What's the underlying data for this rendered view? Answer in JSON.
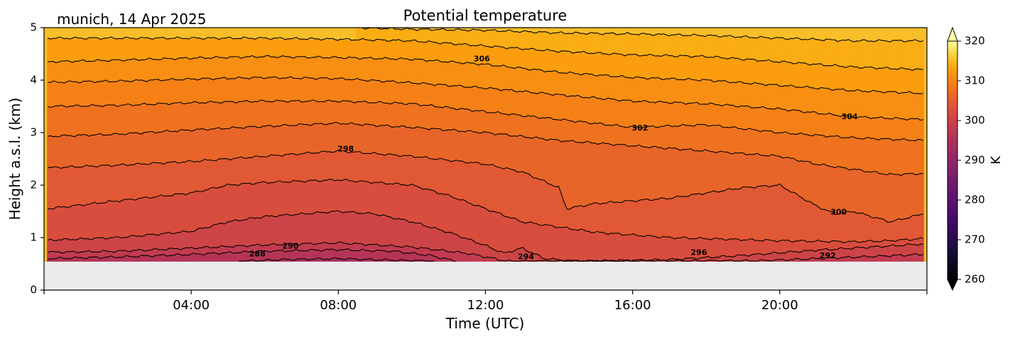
{
  "chart_data": {
    "type": "heatmap",
    "title": "Potential temperature",
    "subtitle": "munich, 14 Apr 2025",
    "xlabel": "Time (UTC)",
    "ylabel": "Height a.s.l. (km)",
    "xlim": [
      0,
      24
    ],
    "ylim": [
      0,
      5
    ],
    "x_ticks": [
      {
        "value": 4,
        "label": "04:00"
      },
      {
        "value": 8,
        "label": "08:00"
      },
      {
        "value": 12,
        "label": "12:00"
      },
      {
        "value": 16,
        "label": "16:00"
      },
      {
        "value": 20,
        "label": "20:00"
      }
    ],
    "y_ticks": [
      0,
      1,
      2,
      3,
      4,
      5
    ],
    "data_lowest_height_km": 0.55,
    "no_data_color": "#ebebeb",
    "colorbar": {
      "label": "K",
      "min": 260,
      "max": 320,
      "ticks": [
        260,
        270,
        280,
        290,
        300,
        310,
        320
      ],
      "colormap": "inferno",
      "extend": "both"
    },
    "contour_interval": 2,
    "contour_levels": [
      {
        "value": 288,
        "x": [
          5.3,
          6.5,
          8.0,
          9.5,
          10.6
        ],
        "y": [
          0.55,
          0.58,
          0.6,
          0.57,
          0.55
        ]
      },
      {
        "value": 290,
        "x": [
          0.1,
          2,
          4,
          6,
          8,
          9.5,
          10.5,
          11.2
        ],
        "y": [
          0.6,
          0.63,
          0.68,
          0.74,
          0.77,
          0.74,
          0.66,
          0.55
        ]
      },
      {
        "value": 292,
        "x": [
          0.1,
          2,
          4,
          6,
          8,
          10,
          11.5,
          12.6,
          19.5,
          21,
          22.5,
          23.9
        ],
        "y": [
          0.72,
          0.74,
          0.8,
          0.86,
          0.9,
          0.82,
          0.7,
          0.55,
          0.56,
          0.6,
          0.64,
          0.68
        ]
      },
      {
        "value": 294,
        "x": [
          0.1,
          2,
          4,
          5,
          6,
          8,
          9,
          10,
          11,
          12,
          12.5,
          13,
          13.6,
          14.5,
          17,
          19,
          21,
          23,
          23.9
        ],
        "y": [
          0.95,
          1.0,
          1.12,
          1.3,
          1.4,
          1.5,
          1.45,
          1.3,
          1.1,
          0.85,
          0.7,
          0.8,
          0.6,
          0.55,
          0.58,
          0.66,
          0.76,
          0.84,
          0.88
        ]
      },
      {
        "value": 296,
        "x": [
          0.1,
          1,
          2,
          4,
          5,
          6,
          8,
          10,
          11,
          12,
          13,
          14,
          15,
          16,
          17,
          18,
          19,
          20,
          21,
          22,
          23,
          23.9
        ],
        "y": [
          1.55,
          1.62,
          1.7,
          1.85,
          2.0,
          2.05,
          2.1,
          2.0,
          1.8,
          1.55,
          1.3,
          1.2,
          1.1,
          1.05,
          1.0,
          0.98,
          0.96,
          0.94,
          0.93,
          0.92,
          0.94,
          0.98
        ]
      },
      {
        "value": 298,
        "x": [
          0.1,
          2,
          4,
          6,
          8,
          10,
          12,
          13,
          14,
          14.2,
          15,
          16,
          17,
          18,
          19,
          20,
          20.5,
          21,
          21.5,
          22,
          23,
          23.9
        ],
        "y": [
          2.33,
          2.38,
          2.45,
          2.55,
          2.65,
          2.55,
          2.4,
          2.25,
          1.95,
          1.55,
          1.65,
          1.7,
          1.75,
          1.85,
          1.95,
          2.0,
          1.8,
          1.6,
          1.45,
          1.5,
          1.3,
          1.45
        ]
      },
      {
        "value": 300,
        "x": [
          0.1,
          2,
          4,
          6,
          8,
          10,
          12,
          14,
          16,
          18,
          20,
          21,
          22,
          23,
          23.9
        ],
        "y": [
          2.93,
          2.97,
          3.05,
          3.12,
          3.18,
          3.1,
          3.0,
          2.85,
          2.75,
          2.65,
          2.55,
          2.4,
          2.3,
          2.2,
          2.22
        ]
      },
      {
        "value": 302,
        "x": [
          0.1,
          2,
          4,
          6,
          8,
          10,
          12,
          14,
          16,
          18,
          20,
          22,
          23.9
        ],
        "y": [
          3.5,
          3.52,
          3.57,
          3.6,
          3.6,
          3.55,
          3.4,
          3.25,
          3.1,
          3.15,
          3.0,
          2.9,
          2.85
        ]
      },
      {
        "value": 304,
        "x": [
          0.1,
          2,
          4,
          6,
          8,
          10,
          12,
          14,
          16,
          18,
          20,
          22,
          23.9
        ],
        "y": [
          3.96,
          3.98,
          4.02,
          4.05,
          4.03,
          3.95,
          3.85,
          3.72,
          3.6,
          3.55,
          3.45,
          3.3,
          3.25
        ]
      },
      {
        "value": 306,
        "x": [
          0.1,
          2,
          4,
          6,
          8,
          10,
          12,
          14,
          16,
          18,
          20,
          22,
          23.9
        ],
        "y": [
          4.35,
          4.38,
          4.42,
          4.45,
          4.43,
          4.4,
          4.3,
          4.15,
          4.05,
          4.0,
          3.9,
          3.8,
          3.75
        ]
      },
      {
        "value": 308,
        "x": [
          0.1,
          2,
          4,
          6,
          8,
          10,
          12,
          14,
          16,
          18,
          20,
          22,
          23.9
        ],
        "y": [
          4.8,
          4.8,
          4.8,
          4.8,
          4.78,
          4.75,
          4.65,
          4.55,
          4.48,
          4.45,
          4.35,
          4.25,
          4.2
        ]
      },
      {
        "value": 310,
        "x": [
          8.5,
          10,
          12,
          14,
          16,
          18,
          20,
          22,
          23.9
        ],
        "y": [
          5.0,
          4.97,
          4.95,
          4.9,
          4.88,
          4.85,
          4.8,
          4.75,
          4.75
        ]
      }
    ],
    "contour_labels": [
      {
        "text": "288",
        "x": 5.8,
        "y": 0.68
      },
      {
        "text": "290",
        "x": 6.7,
        "y": 0.83
      },
      {
        "text": "292",
        "x": 21.3,
        "y": 0.65
      },
      {
        "text": "294",
        "x": 13.1,
        "y": 0.63
      },
      {
        "text": "296",
        "x": 17.8,
        "y": 0.71
      },
      {
        "text": "298",
        "x": 8.2,
        "y": 2.68
      },
      {
        "text": "300",
        "x": 21.6,
        "y": 1.48
      },
      {
        "text": "302",
        "x": 16.2,
        "y": 3.08
      },
      {
        "text": "304",
        "x": 21.9,
        "y": 3.3
      },
      {
        "text": "306",
        "x": 11.9,
        "y": 4.4
      }
    ]
  }
}
